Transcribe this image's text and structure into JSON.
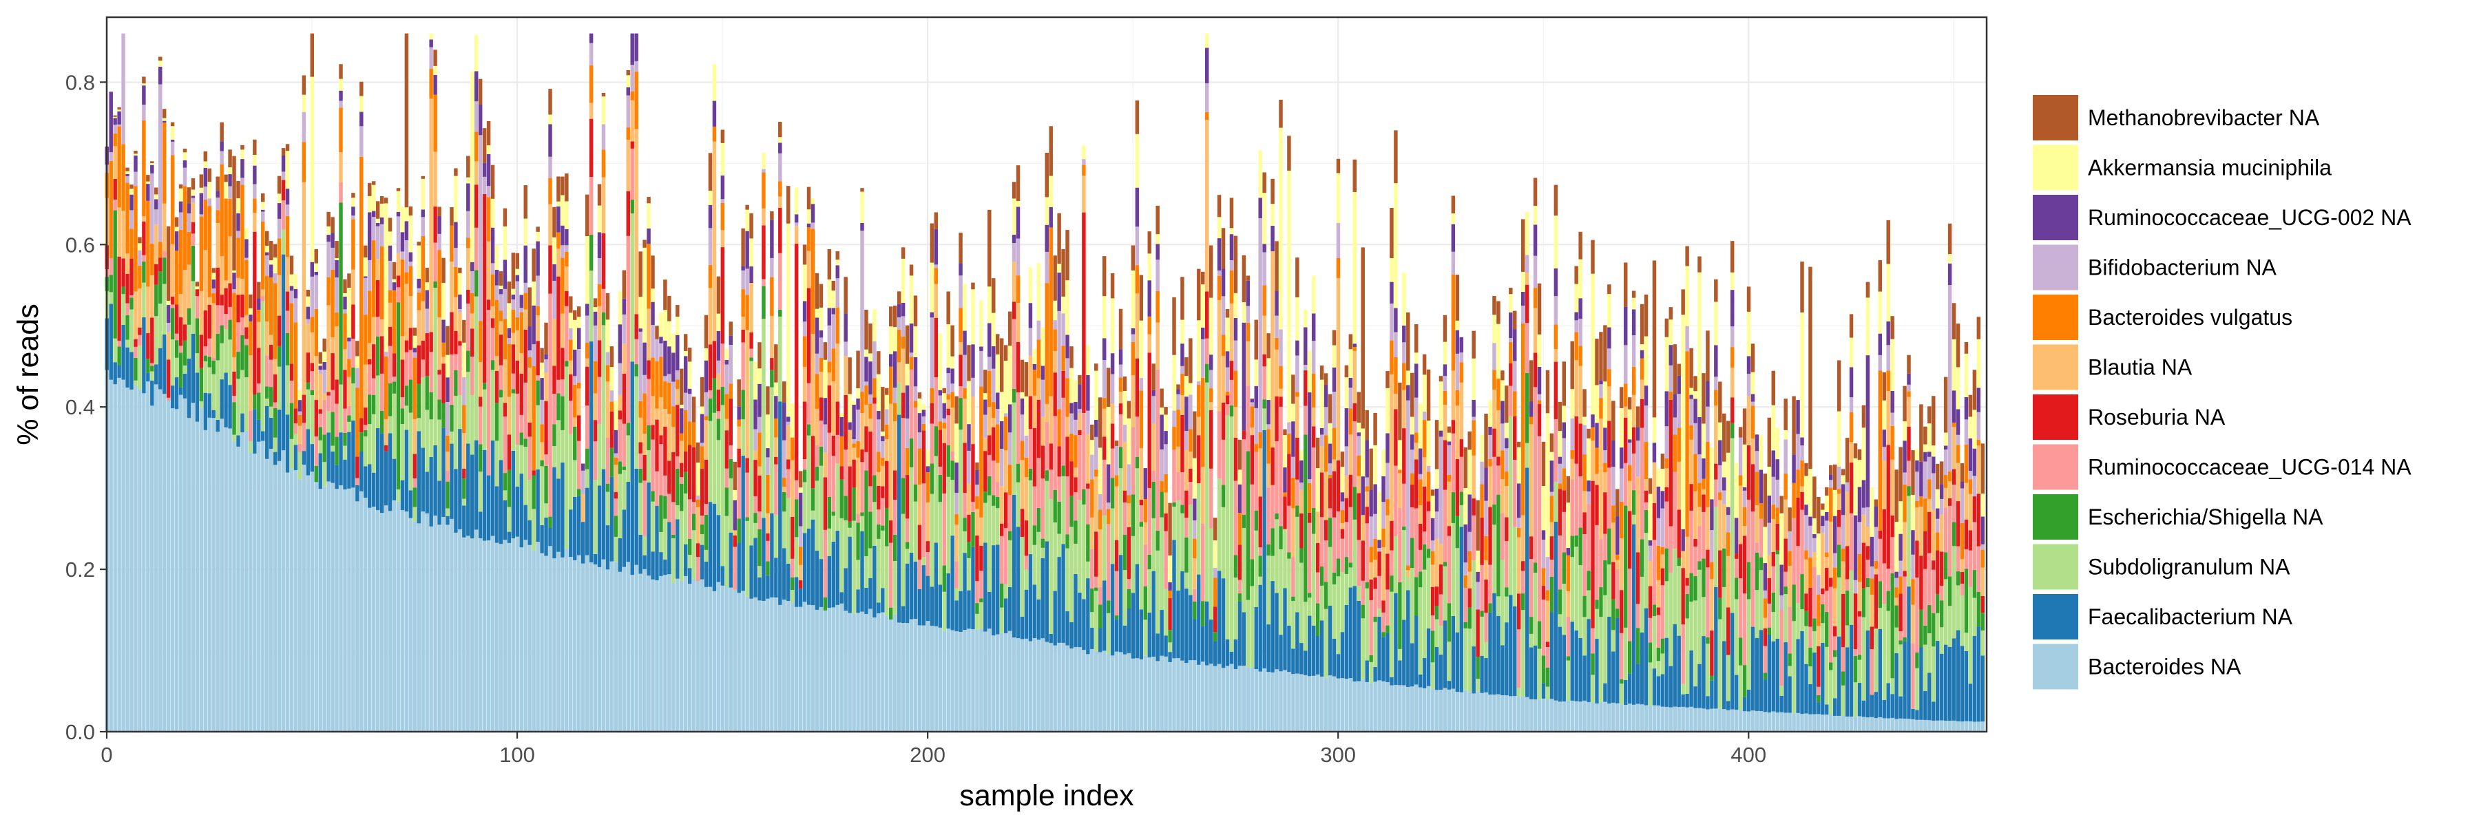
{
  "chart_data": {
    "type": "bar",
    "stacked": true,
    "xlabel": "sample index",
    "ylabel": "% of reads",
    "xlim": [
      0,
      458
    ],
    "ylim": [
      0,
      0.88
    ],
    "x_ticks": [
      0,
      100,
      200,
      300,
      400
    ],
    "x_tick_labels": [
      "0",
      "100",
      "200",
      "300",
      "400"
    ],
    "y_ticks": [
      0,
      0.2,
      0.4,
      0.6,
      0.8
    ],
    "y_tick_labels": [
      "0.0",
      "0.2",
      "0.4",
      "0.6",
      "0.8"
    ],
    "grid": true,
    "legend_position": "right",
    "n_samples": 458,
    "series": [
      {
        "name": "Bacteroides NA",
        "color": "#a6cee3",
        "values": [
          0.44,
          0.4,
          0.35,
          0.3,
          0.27,
          0.24,
          0.22,
          0.2,
          0.18,
          0.16,
          0.15,
          0.13,
          0.12,
          0.1,
          0.09,
          0.08,
          0.07,
          0.06,
          0.05,
          0.04,
          0.035,
          0.03,
          0.025,
          0.02,
          0.015,
          0.012
        ]
      },
      {
        "name": "Faecalibacterium NA",
        "color": "#1f78b4",
        "values": [
          0.04,
          0.04,
          0.04,
          0.05,
          0.05,
          0.05,
          0.05,
          0.05,
          0.05,
          0.05,
          0.05,
          0.05,
          0.06,
          0.05,
          0.05,
          0.05,
          0.05,
          0.05,
          0.05,
          0.06,
          0.05,
          0.05,
          0.05,
          0.05,
          0.05,
          0.05
        ]
      },
      {
        "name": "Subdoligranulum NA",
        "color": "#b2df8a",
        "values": [
          0.02,
          0.03,
          0.03,
          0.03,
          0.04,
          0.04,
          0.04,
          0.05,
          0.05,
          0.05,
          0.05,
          0.05,
          0.05,
          0.05,
          0.05,
          0.05,
          0.05,
          0.05,
          0.05,
          0.05,
          0.05,
          0.05,
          0.05,
          0.05,
          0.05,
          0.05
        ]
      },
      {
        "name": "Escherichia/Shigella NA",
        "color": "#33a02c",
        "values": [
          0.01,
          0.02,
          0.02,
          0.02,
          0.02,
          0.02,
          0.02,
          0.02,
          0.02,
          0.02,
          0.02,
          0.02,
          0.02,
          0.02,
          0.02,
          0.02,
          0.02,
          0.02,
          0.02,
          0.02,
          0.02,
          0.02,
          0.02,
          0.02,
          0.02,
          0.02
        ]
      },
      {
        "name": "Ruminococcaceae_UCG-014 NA",
        "color": "#fb9a99",
        "values": [
          0.01,
          0.01,
          0.02,
          0.02,
          0.02,
          0.03,
          0.03,
          0.03,
          0.03,
          0.03,
          0.04,
          0.04,
          0.04,
          0.04,
          0.04,
          0.04,
          0.04,
          0.04,
          0.04,
          0.04,
          0.04,
          0.04,
          0.04,
          0.04,
          0.04,
          0.04
        ]
      },
      {
        "name": "Roseburia NA",
        "color": "#e31a1c",
        "values": [
          0.02,
          0.02,
          0.02,
          0.02,
          0.02,
          0.03,
          0.03,
          0.03,
          0.03,
          0.03,
          0.03,
          0.03,
          0.03,
          0.03,
          0.03,
          0.03,
          0.03,
          0.03,
          0.03,
          0.03,
          0.03,
          0.03,
          0.03,
          0.03,
          0.03,
          0.03
        ]
      },
      {
        "name": "Blautia NA",
        "color": "#fdbf6f",
        "values": [
          0.03,
          0.03,
          0.03,
          0.03,
          0.03,
          0.03,
          0.03,
          0.03,
          0.03,
          0.03,
          0.03,
          0.03,
          0.03,
          0.03,
          0.03,
          0.03,
          0.03,
          0.03,
          0.03,
          0.03,
          0.03,
          0.03,
          0.03,
          0.03,
          0.03,
          0.03
        ]
      },
      {
        "name": "Bacteroides vulgatus",
        "color": "#ff7f00",
        "values": [
          0.07,
          0.05,
          0.05,
          0.04,
          0.04,
          0.03,
          0.03,
          0.03,
          0.02,
          0.02,
          0.02,
          0.02,
          0.02,
          0.02,
          0.02,
          0.02,
          0.02,
          0.02,
          0.02,
          0.02,
          0.02,
          0.02,
          0.02,
          0.02,
          0.02,
          0.02
        ]
      },
      {
        "name": "Bifidobacterium NA",
        "color": "#cab2d6",
        "values": [
          0.01,
          0.01,
          0.01,
          0.02,
          0.02,
          0.02,
          0.02,
          0.02,
          0.02,
          0.02,
          0.02,
          0.02,
          0.02,
          0.02,
          0.02,
          0.02,
          0.02,
          0.02,
          0.02,
          0.02,
          0.02,
          0.02,
          0.02,
          0.02,
          0.02,
          0.02
        ]
      },
      {
        "name": "Ruminococcaceae_UCG-002 NA",
        "color": "#6a3d9a",
        "values": [
          0.01,
          0.01,
          0.01,
          0.01,
          0.01,
          0.02,
          0.02,
          0.02,
          0.02,
          0.02,
          0.02,
          0.02,
          0.02,
          0.02,
          0.02,
          0.02,
          0.02,
          0.02,
          0.02,
          0.02,
          0.02,
          0.02,
          0.02,
          0.02,
          0.02,
          0.02
        ]
      },
      {
        "name": "Akkermansia muciniphila",
        "color": "#ffff99",
        "values": [
          0.0,
          0.01,
          0.01,
          0.01,
          0.02,
          0.02,
          0.02,
          0.02,
          0.02,
          0.02,
          0.02,
          0.03,
          0.03,
          0.03,
          0.03,
          0.03,
          0.03,
          0.03,
          0.03,
          0.03,
          0.03,
          0.03,
          0.03,
          0.03,
          0.03,
          0.03
        ]
      },
      {
        "name": "Methanobrevibacter NA",
        "color": "#b15928",
        "values": [
          0.0,
          0.01,
          0.01,
          0.01,
          0.01,
          0.02,
          0.02,
          0.02,
          0.02,
          0.02,
          0.02,
          0.03,
          0.03,
          0.03,
          0.03,
          0.03,
          0.03,
          0.03,
          0.03,
          0.03,
          0.03,
          0.03,
          0.03,
          0.03,
          0.03,
          0.03
        ]
      }
    ],
    "x_profile": [
      0,
      18,
      37,
      55,
      73,
      92,
      110,
      128,
      147,
      165,
      183,
      202,
      220,
      238,
      257,
      275,
      293,
      312,
      330,
      348,
      367,
      385,
      403,
      422,
      440,
      457
    ]
  },
  "legend": {
    "entries": [
      "Methanobrevibacter NA",
      "Akkermansia muciniphila",
      "Ruminococcaceae_UCG-002 NA",
      "Bifidobacterium NA",
      "Bacteroides vulgatus",
      "Blautia NA",
      "Roseburia NA",
      "Ruminococcaceae_UCG-014 NA",
      "Escherichia/Shigella NA",
      "Subdoligranulum NA",
      "Faecalibacterium NA",
      "Bacteroides NA"
    ]
  }
}
